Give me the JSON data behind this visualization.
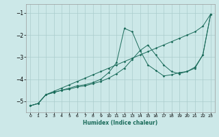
{
  "xlabel": "Humidex (Indice chaleur)",
  "bg_color": "#cce8e8",
  "grid_color": "#aacccc",
  "line_color": "#1a6b5a",
  "xlim": [
    -0.5,
    23.5
  ],
  "ylim": [
    -5.5,
    -0.6
  ],
  "yticks": [
    -5,
    -4,
    -3,
    -2,
    -1
  ],
  "xticks": [
    0,
    1,
    2,
    3,
    4,
    5,
    6,
    7,
    8,
    9,
    10,
    11,
    12,
    13,
    14,
    15,
    16,
    17,
    18,
    19,
    20,
    21,
    22,
    23
  ],
  "line1_x": [
    0,
    1,
    2,
    3,
    4,
    5,
    6,
    7,
    8,
    9,
    10,
    11,
    12,
    13,
    14,
    15,
    16,
    17,
    18,
    19,
    20,
    21,
    22,
    23
  ],
  "line1_y": [
    -5.2,
    -5.1,
    -4.7,
    -4.55,
    -4.4,
    -4.25,
    -4.1,
    -3.95,
    -3.8,
    -3.65,
    -3.5,
    -3.35,
    -3.2,
    -3.05,
    -2.9,
    -2.75,
    -2.6,
    -2.45,
    -2.3,
    -2.15,
    -2.0,
    -1.85,
    -1.6,
    -1.05
  ],
  "line2_x": [
    0,
    1,
    2,
    3,
    4,
    5,
    6,
    7,
    8,
    9,
    10,
    11,
    12,
    13,
    14,
    15,
    16,
    17,
    18,
    19,
    20,
    21,
    22,
    23
  ],
  "line2_y": [
    -5.2,
    -5.1,
    -4.7,
    -4.6,
    -4.5,
    -4.45,
    -4.35,
    -4.3,
    -4.2,
    -4.1,
    -3.95,
    -3.75,
    -3.5,
    -3.1,
    -2.7,
    -2.45,
    -2.9,
    -3.35,
    -3.65,
    -3.75,
    -3.65,
    -3.45,
    -2.9,
    -1.05
  ],
  "line3_x": [
    0,
    1,
    2,
    3,
    4,
    5,
    6,
    7,
    8,
    9,
    10,
    11,
    12,
    13,
    14,
    15,
    16,
    17,
    18,
    19,
    20,
    21,
    22,
    23
  ],
  "line3_y": [
    -5.2,
    -5.1,
    -4.7,
    -4.6,
    -4.5,
    -4.4,
    -4.3,
    -4.25,
    -4.15,
    -4.0,
    -3.7,
    -3.25,
    -1.7,
    -1.85,
    -2.7,
    -3.35,
    -3.6,
    -3.85,
    -3.8,
    -3.7,
    -3.65,
    -3.5,
    -2.9,
    -1.05
  ]
}
